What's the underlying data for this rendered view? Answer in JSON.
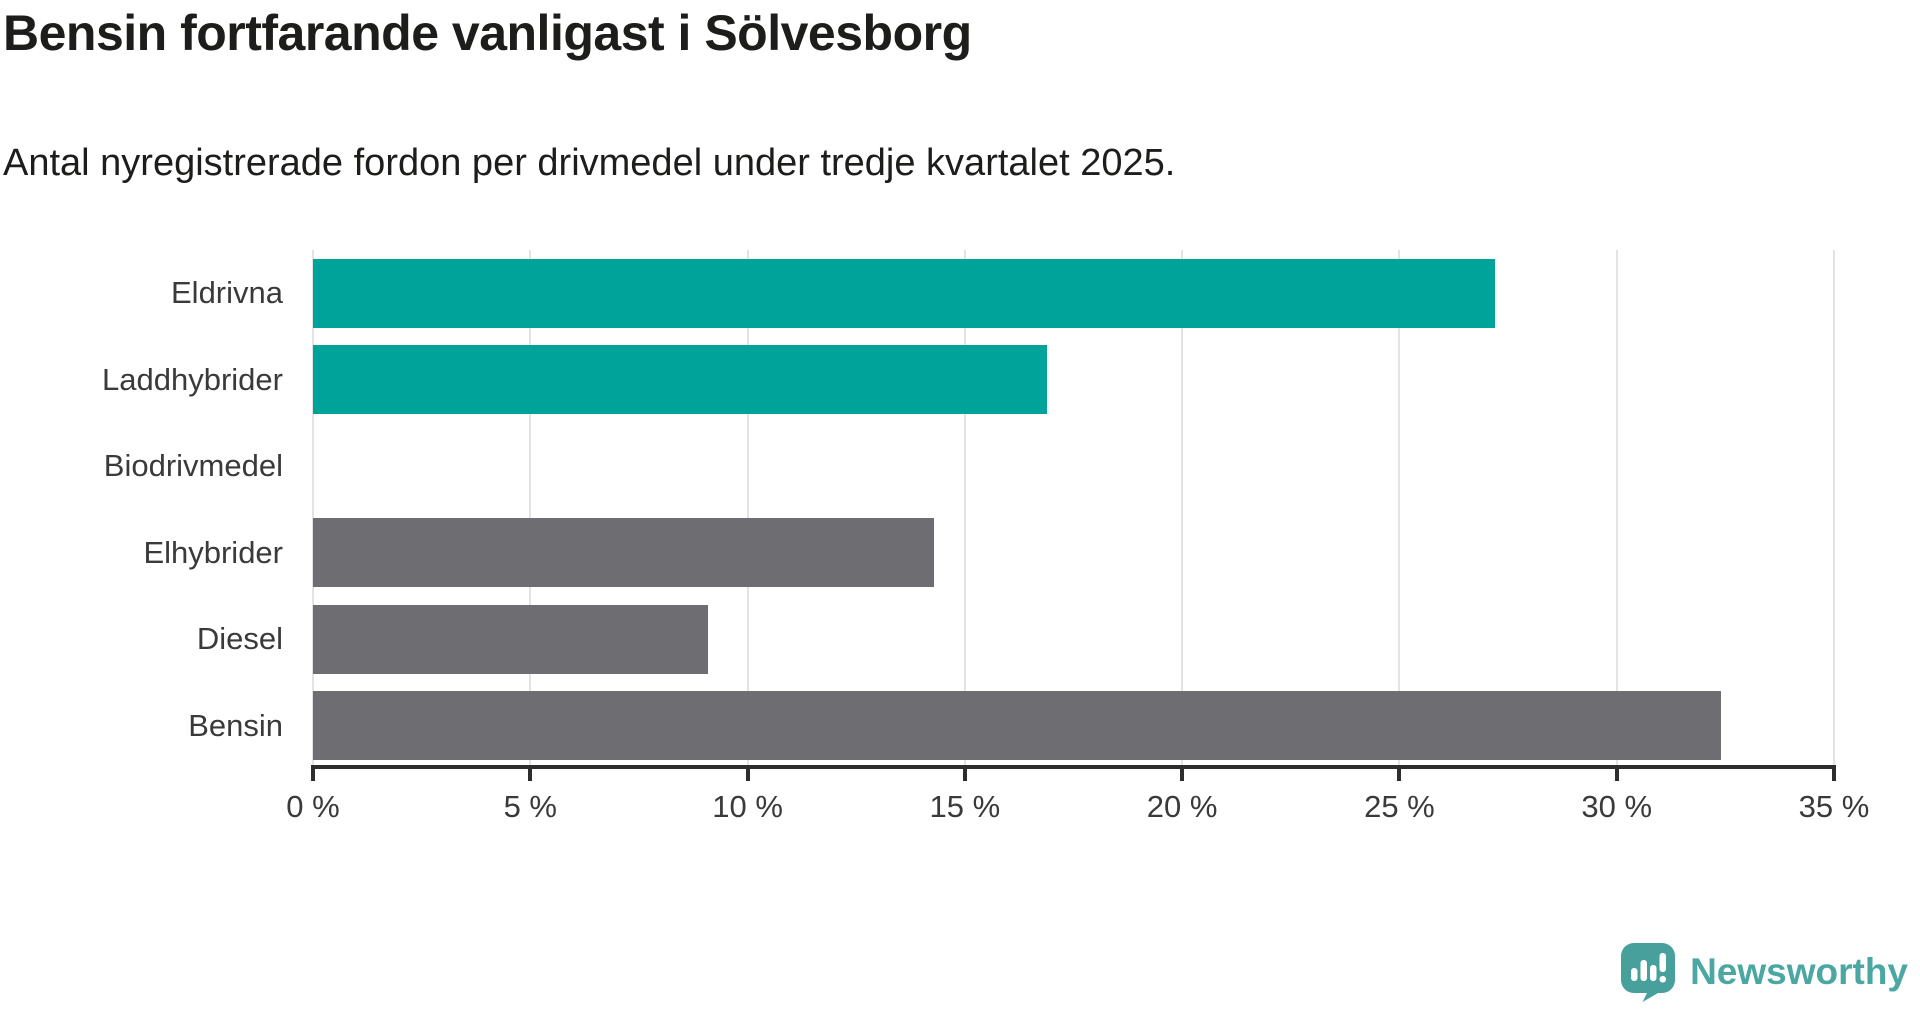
{
  "title": "Bensin fortfarande vanligast i Sölvesborg",
  "subtitle": "Antal nyregistrerade fordon per drivmedel under tredje kvartalet 2025.",
  "chart_data": {
    "type": "bar",
    "orientation": "horizontal",
    "title": "Bensin fortfarande vanligast i Sölvesborg",
    "subtitle": "Antal nyregistrerade fordon per drivmedel under tredje kvartalet 2025.",
    "categories": [
      "Eldrivna",
      "Laddhybrider",
      "Biodrivmedel",
      "Elhybrider",
      "Diesel",
      "Bensin"
    ],
    "values": [
      27.2,
      16.9,
      0,
      14.3,
      9.1,
      32.4
    ],
    "unit": "%",
    "bar_colors": [
      "#00a39a",
      "#00a39a",
      "#6d6d72",
      "#6d6d72",
      "#6d6d72",
      "#6d6d72"
    ],
    "xlim": [
      0,
      35
    ],
    "x_ticks": [
      0,
      5,
      10,
      15,
      20,
      25,
      30,
      35
    ],
    "x_tick_labels": [
      "0 %",
      "5 %",
      "10 %",
      "15 %",
      "20 %",
      "25 %",
      "30 %",
      "35 %"
    ],
    "grid": "vertical-only",
    "legend": "none",
    "xlabel": "",
    "ylabel": ""
  },
  "colors": {
    "highlight_teal": "#00a39a",
    "neutral_gray": "#6d6d72",
    "gridline": "#e3e3e3",
    "axis": "#2d2d2d",
    "label_text": "#3a3a3a",
    "title_text": "#1d1d1b",
    "brand_teal": "#4ba7a2",
    "background": "#ffffff"
  },
  "branding": {
    "logo_text": "Newsworthy"
  }
}
